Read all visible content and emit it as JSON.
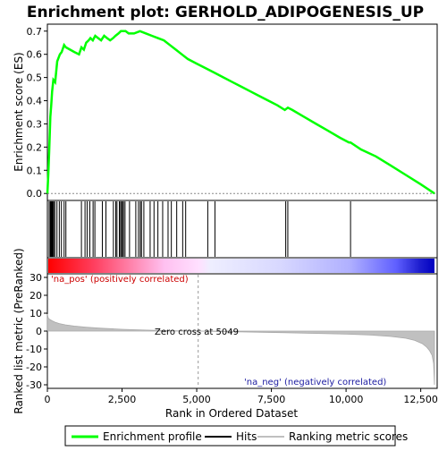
{
  "chart_data": {
    "type": "line",
    "title": "Enrichment plot: GERHOLD_ADIPOGENESIS_UP",
    "es_panel": {
      "ylabel": "Enrichment score (ES)",
      "ylim": [
        -0.03,
        0.73
      ],
      "yticks": [
        "0.0",
        "0.1",
        "0.2",
        "0.3",
        "0.4",
        "0.5",
        "0.6",
        "0.7"
      ],
      "series": [
        {
          "name": "Enrichment profile",
          "color": "#00ff00",
          "x": [
            0,
            30,
            60,
            80,
            100,
            130,
            160,
            200,
            260,
            330,
            420,
            480,
            560,
            620,
            760,
            900,
            1060,
            1140,
            1220,
            1300,
            1380,
            1440,
            1520,
            1600,
            1700,
            1800,
            1900,
            2000,
            2100,
            2200,
            2280,
            2380,
            2460,
            2540,
            2620,
            2720,
            2900,
            3100,
            3300,
            3500,
            3700,
            3900,
            4100,
            4300,
            4500,
            4700,
            5000,
            5300,
            5600,
            5900,
            6200,
            6500,
            6800,
            7100,
            7400,
            7700,
            7950,
            8050,
            8200,
            8600,
            9000,
            9400,
            9800,
            10100,
            10150,
            10500,
            11000,
            11500,
            12000,
            12500,
            12960
          ],
          "y": [
            0.0,
            0.08,
            0.18,
            0.26,
            0.33,
            0.38,
            0.44,
            0.49,
            0.48,
            0.57,
            0.6,
            0.61,
            0.64,
            0.63,
            0.62,
            0.61,
            0.6,
            0.63,
            0.62,
            0.65,
            0.66,
            0.67,
            0.66,
            0.68,
            0.67,
            0.66,
            0.68,
            0.67,
            0.66,
            0.67,
            0.68,
            0.69,
            0.7,
            0.7,
            0.7,
            0.69,
            0.69,
            0.7,
            0.69,
            0.68,
            0.67,
            0.66,
            0.64,
            0.62,
            0.6,
            0.58,
            0.56,
            0.54,
            0.52,
            0.5,
            0.48,
            0.46,
            0.44,
            0.42,
            0.4,
            0.38,
            0.36,
            0.37,
            0.36,
            0.33,
            0.3,
            0.27,
            0.24,
            0.22,
            0.22,
            0.19,
            0.16,
            0.12,
            0.08,
            0.04,
            0.0
          ]
        }
      ]
    },
    "hits": {
      "name": "Hits",
      "x": [
        60,
        100,
        120,
        150,
        180,
        210,
        250,
        320,
        400,
        470,
        560,
        620,
        1140,
        1260,
        1330,
        1420,
        1530,
        1590,
        1840,
        1960,
        2210,
        2290,
        2330,
        2410,
        2450,
        2490,
        2510,
        2550,
        2600,
        2750,
        2960,
        3050,
        3110,
        3150,
        3230,
        3440,
        3570,
        3700,
        3860,
        4040,
        4150,
        4330,
        4530,
        4630,
        5370,
        5610,
        7980,
        8050,
        10150
      ]
    },
    "rank_bar": {
      "gradient_breaks": [
        5049
      ],
      "colors": [
        "#ff0000",
        "#ffffff",
        "#0000ff"
      ]
    },
    "metric_panel": {
      "ylabel": "Ranked list metric (PreRanked)",
      "ylim": [
        -32,
        32
      ],
      "yticks": [
        "30",
        "20",
        "10",
        "0",
        "-10",
        "-20",
        "-30"
      ],
      "series": [
        {
          "name": "Ranking metric scores",
          "color": "#c0c0c0",
          "x": [
            0,
            30,
            80,
            150,
            250,
            400,
            600,
            900,
            1300,
            1800,
            2500,
            3300,
            4200,
            5049,
            6000,
            7000,
            8000,
            9000,
            10000,
            10800,
            11500,
            12000,
            12300,
            12550,
            12700,
            12800,
            12880,
            12930,
            12960
          ],
          "y": [
            9.5,
            7.2,
            6.5,
            5.8,
            5.0,
            4.2,
            3.5,
            2.8,
            2.2,
            1.6,
            1.0,
            0.55,
            0.2,
            0.0,
            -0.3,
            -0.6,
            -0.9,
            -1.3,
            -1.7,
            -2.2,
            -3.0,
            -4.0,
            -5.2,
            -7.0,
            -9.0,
            -11.0,
            -13.5,
            -18.0,
            -30.0
          ]
        }
      ],
      "annotations": {
        "pos": "'na_pos' (positively correlated)",
        "neg": "'na_neg' (negatively correlated)",
        "zero": "Zero cross at 5049"
      },
      "zero_cross": 5049
    },
    "xlabel": "Rank in Ordered Dataset",
    "xlim": [
      0,
      13050
    ],
    "xticks": [
      0,
      2500,
      5000,
      7500,
      10000,
      12500
    ],
    "xtick_labels": [
      "0",
      "2,500",
      "5,000",
      "7,500",
      "10,000",
      "12,500"
    ],
    "legend": [
      "Enrichment profile",
      "Hits",
      "Ranking metric scores"
    ],
    "legend_position": "bottom"
  }
}
